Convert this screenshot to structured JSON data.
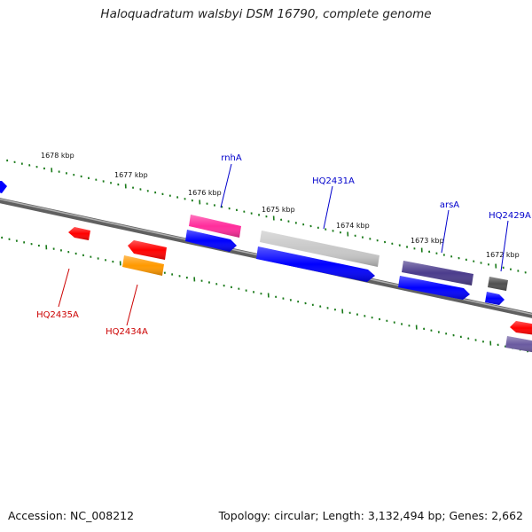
{
  "title": "Haloquadratum walsbyi DSM 16790, complete genome",
  "footer": {
    "accession": "Accession: NC_008212",
    "summary": "Topology: circular; Length: 3,132,494 bp; Genes: 2,662"
  },
  "colors": {
    "backbone": "#808080",
    "tick": "#1a7a1a",
    "label_forward": "#0000cc",
    "label_reverse": "#cc0000",
    "cds_blue": "#0000ff",
    "cds_red": "#ff0000",
    "gene_pink": "#ff2d9c",
    "gene_orange": "#ff9900",
    "gene_silver": "#c8c8c8",
    "gene_purple": "#4b3c8c",
    "gene_darkgray": "#505050"
  },
  "ruler": {
    "labels": [
      "1678 kbp",
      "1677 kbp",
      "1676 kbp",
      "1675 kbp",
      "1674 kbp",
      "1673 kbp",
      "1672 kbp"
    ]
  },
  "genes": [
    {
      "name": "rnhA",
      "strand": "forward"
    },
    {
      "name": "HQ2431A",
      "strand": "forward"
    },
    {
      "name": "arsA",
      "strand": "forward"
    },
    {
      "name": "HQ2429A",
      "strand": "forward"
    },
    {
      "name": "HQ2435A",
      "strand": "reverse"
    },
    {
      "name": "HQ2434A",
      "strand": "reverse"
    }
  ]
}
